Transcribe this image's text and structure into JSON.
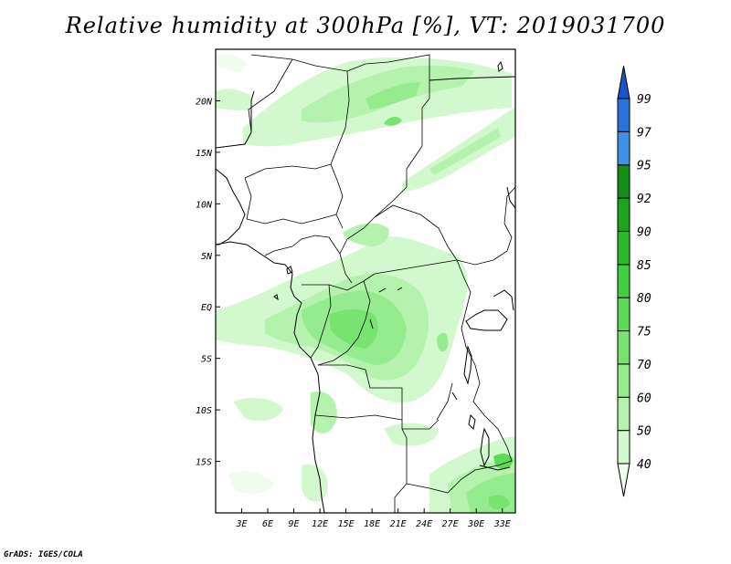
{
  "title": "Relative humidity at 300hPa [%], VT: 2019031700",
  "credit": "GrADS: IGES/COLA",
  "colors": {
    "frame": "#000000",
    "land_lines": "#000000",
    "background": "#ffffff"
  },
  "map": {
    "lon_range": [
      0,
      34.5
    ],
    "lat_range": [
      -20,
      25
    ],
    "lon_ticks": [
      {
        "value": 3,
        "label": "3E"
      },
      {
        "value": 6,
        "label": "6E"
      },
      {
        "value": 9,
        "label": "9E"
      },
      {
        "value": 12,
        "label": "12E"
      },
      {
        "value": 15,
        "label": "15E"
      },
      {
        "value": 18,
        "label": "18E"
      },
      {
        "value": 21,
        "label": "21E"
      },
      {
        "value": 24,
        "label": "24E"
      },
      {
        "value": 27,
        "label": "27E"
      },
      {
        "value": 30,
        "label": "30E"
      },
      {
        "value": 33,
        "label": "33E"
      }
    ],
    "lat_ticks": [
      {
        "value": 20,
        "label": "20N"
      },
      {
        "value": 15,
        "label": "15N"
      },
      {
        "value": 10,
        "label": "10N"
      },
      {
        "value": 5,
        "label": "5N"
      },
      {
        "value": 0,
        "label": "EQ"
      },
      {
        "value": -5,
        "label": "5S"
      },
      {
        "value": -10,
        "label": "10S"
      },
      {
        "value": -15,
        "label": "15S"
      }
    ]
  },
  "colorbar": {
    "levels": [
      "40",
      "50",
      "60",
      "70",
      "75",
      "80",
      "85",
      "90",
      "92",
      "95",
      "97",
      "99"
    ],
    "colors": [
      "#f0fcee",
      "#d2f8cd",
      "#b4f2ae",
      "#95ec8e",
      "#78e46f",
      "#5cdb55",
      "#41ce3f",
      "#2db82c",
      "#1ea31f",
      "#148e17",
      "#3d92e8",
      "#2a72dc",
      "#1a55c8"
    ]
  }
}
